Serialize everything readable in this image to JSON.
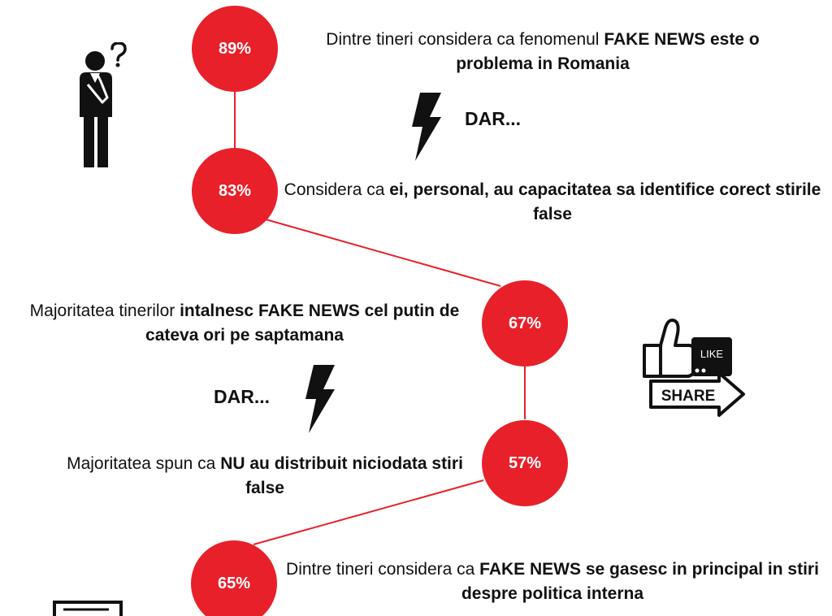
{
  "colors": {
    "accent": "#e8202a",
    "text": "#111111",
    "background": "#ffffff"
  },
  "icons": {
    "thinking_person": "thinking-person-icon",
    "lightning": "lightning-bolt-icon",
    "like_share": "like-share-icon",
    "document": "document-icon"
  },
  "steps": [
    {
      "percent": "89%",
      "statement": {
        "plain": "Dintre tineri considera ca fenomenul ",
        "bold": "FAKE NEWS este o problema in Romania"
      }
    },
    {
      "percent": "83%",
      "statement": {
        "plain": "Considera ca ",
        "bold": "ei, personal, au capacitatea sa identifice corect stirile false"
      }
    },
    {
      "percent": "67%",
      "statement": {
        "plain": "Majoritatea tinerilor ",
        "bold": "intalnesc FAKE NEWS cel putin de cateva ori pe saptamana"
      }
    },
    {
      "percent": "57%",
      "statement": {
        "plain": "Majoritatea spun ca ",
        "bold": "NU au distribuit niciodata stiri false"
      }
    },
    {
      "percent": "65%",
      "statement": {
        "plain": "Dintre tineri considera ca ",
        "bold": "FAKE NEWS se gasesc in principal in stiri despre politica interna"
      }
    }
  ],
  "contrasts": [
    {
      "label": "DAR..."
    },
    {
      "label": "DAR..."
    }
  ],
  "like_share": {
    "like_label": "LIKE",
    "share_label": "SHARE"
  }
}
